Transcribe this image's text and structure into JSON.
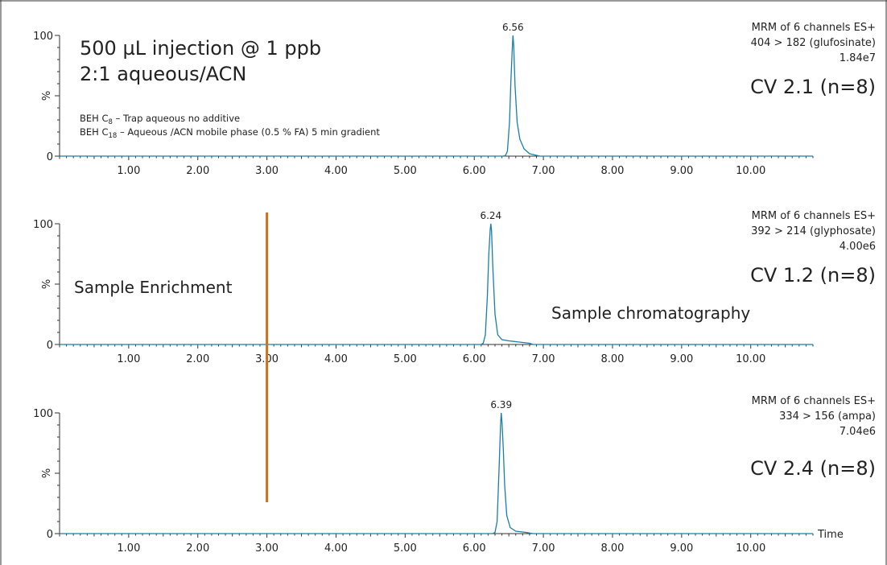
{
  "chart_data": [
    {
      "type": "line",
      "x_unit_label": "",
      "xlim": [
        0,
        10.9
      ],
      "ylim": [
        0,
        100
      ],
      "x_ticks": [
        "1.00",
        "2.00",
        "3.00",
        "4.00",
        "5.00",
        "6.00",
        "7.00",
        "8.00",
        "9.00",
        "10.00"
      ],
      "y_ticks": [
        "0",
        "%",
        "100"
      ],
      "peak": {
        "rt": 6.56,
        "label": "6.56"
      },
      "trace": {
        "x": [
          0,
          6.42,
          6.45,
          6.48,
          6.51,
          6.53,
          6.55,
          6.56,
          6.57,
          6.59,
          6.62,
          6.66,
          6.72,
          6.8,
          6.95,
          10.9
        ],
        "y": [
          0,
          0,
          0.5,
          4,
          28,
          62,
          90,
          100,
          92,
          58,
          28,
          14,
          6,
          2,
          0,
          0
        ]
      },
      "info": [
        "MRM of 6 channels ES+",
        "404 > 182 (glufosinate)",
        "1.84e7"
      ],
      "cv": "CV 2.1 (n=8)",
      "annotations": {
        "title_lines": [
          "500 µL injection @ 1 ppb",
          "2:1 aqueous/ACN"
        ],
        "method_line1": {
          "pre": "BEH C",
          "sub": "8",
          "post": " – Trap aqueous no additive"
        },
        "method_line2": {
          "pre": "BEH C",
          "sub": "18",
          "post": " – Aqueous /ACN  mobile phase (0.5 % FA) 5 min gradient"
        }
      }
    },
    {
      "type": "line",
      "xlim": [
        0,
        10.9
      ],
      "ylim": [
        0,
        100
      ],
      "x_ticks": [
        "1.00",
        "2.00",
        "3.00",
        "4.00",
        "5.00",
        "6.00",
        "7.00",
        "8.00",
        "9.00",
        "10.00"
      ],
      "y_ticks": [
        "0",
        "%",
        "100"
      ],
      "peak": {
        "rt": 6.24,
        "label": "6.24"
      },
      "trace": {
        "x": [
          0,
          6.1,
          6.13,
          6.16,
          6.19,
          6.21,
          6.23,
          6.24,
          6.25,
          6.27,
          6.3,
          6.34,
          6.4,
          6.5,
          6.65,
          6.8,
          6.85,
          10.9
        ],
        "y": [
          0,
          0,
          1,
          8,
          40,
          75,
          95,
          100,
          94,
          62,
          25,
          8,
          4,
          3,
          2,
          1,
          0,
          0
        ]
      },
      "info": [
        "MRM of 6 channels ES+",
        "392 > 214 (glyphosate)",
        "4.00e6"
      ],
      "cv": "CV 1.2 (n=8)",
      "annotations": {
        "left_label": "Sample Enrichment",
        "right_label": "Sample chromatography"
      }
    },
    {
      "type": "line",
      "xlim": [
        0,
        10.9
      ],
      "ylim": [
        0,
        100
      ],
      "x_ticks": [
        "1.00",
        "2.00",
        "3.00",
        "4.00",
        "5.00",
        "6.00",
        "7.00",
        "8.00",
        "9.00",
        "10.00"
      ],
      "y_ticks": [
        "0",
        "%",
        "100"
      ],
      "x_axis_label": "Time",
      "peak": {
        "rt": 6.39,
        "label": "6.39"
      },
      "trace": {
        "x": [
          0,
          6.27,
          6.3,
          6.33,
          6.36,
          6.38,
          6.39,
          6.4,
          6.42,
          6.44,
          6.47,
          6.52,
          6.6,
          6.75,
          6.85,
          10.9
        ],
        "y": [
          0,
          0,
          1,
          10,
          55,
          90,
          100,
          93,
          70,
          40,
          15,
          5,
          2,
          1,
          0,
          0
        ]
      },
      "info": [
        "MRM of 6 channels ES+",
        "334 > 156 (ampa)",
        "7.04e6"
      ],
      "cv": "CV 2.4 (n=8)"
    }
  ],
  "divider": {
    "x": 3.0,
    "color": "#c9711f"
  },
  "colors": {
    "trace": "#1a7fa6",
    "axis": "#333333",
    "text": "#222222"
  }
}
